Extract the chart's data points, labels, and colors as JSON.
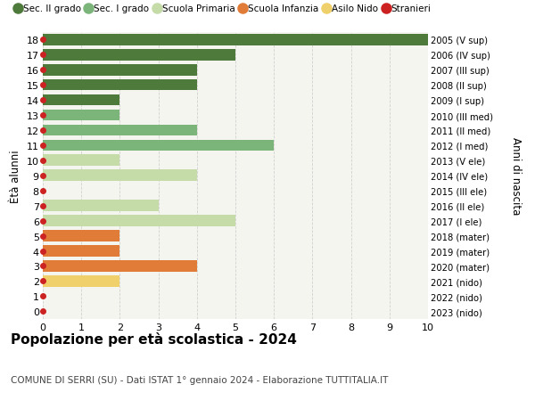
{
  "ages": [
    18,
    17,
    16,
    15,
    14,
    13,
    12,
    11,
    10,
    9,
    8,
    7,
    6,
    5,
    4,
    3,
    2,
    1,
    0
  ],
  "right_labels": [
    "2005 (V sup)",
    "2006 (IV sup)",
    "2007 (III sup)",
    "2008 (II sup)",
    "2009 (I sup)",
    "2010 (III med)",
    "2011 (II med)",
    "2012 (I med)",
    "2013 (V ele)",
    "2014 (IV ele)",
    "2015 (III ele)",
    "2016 (II ele)",
    "2017 (I ele)",
    "2018 (mater)",
    "2019 (mater)",
    "2020 (mater)",
    "2021 (nido)",
    "2022 (nido)",
    "2023 (nido)"
  ],
  "values": [
    10,
    5,
    4,
    4,
    2,
    2,
    4,
    6,
    2,
    4,
    0,
    3,
    5,
    2,
    2,
    4,
    2,
    0,
    0
  ],
  "bar_colors": [
    "#4e7a3c",
    "#4e7a3c",
    "#4e7a3c",
    "#4e7a3c",
    "#4e7a3c",
    "#7cb57a",
    "#7cb57a",
    "#7cb57a",
    "#c5dba8",
    "#c5dba8",
    "#c5dba8",
    "#c5dba8",
    "#c5dba8",
    "#e07c38",
    "#e07c38",
    "#e07c38",
    "#f0d06a",
    "#f0d06a",
    "#f0d06a"
  ],
  "dot_color": "#cc2222",
  "xlim": [
    0,
    10
  ],
  "ylim": [
    -0.5,
    18.5
  ],
  "ylabel_left": "Ètà alunni",
  "ylabel_right": "Anni di nascita",
  "title": "Popolazione per età scolastica - 2024",
  "subtitle": "COMUNE DI SERRI (SU) - Dati ISTAT 1° gennaio 2024 - Elaborazione TUTTITALIA.IT",
  "xticks": [
    0,
    1,
    2,
    3,
    4,
    5,
    6,
    7,
    8,
    9,
    10
  ],
  "legend_labels": [
    "Sec. II grado",
    "Sec. I grado",
    "Scuola Primaria",
    "Scuola Infanzia",
    "Asilo Nido",
    "Stranieri"
  ],
  "legend_colors": [
    "#4e7a3c",
    "#7cb57a",
    "#c5dba8",
    "#e07c38",
    "#f0d06a",
    "#cc2222"
  ],
  "bar_height": 0.75,
  "background_color": "#ffffff",
  "plot_bg_color": "#f5f5f0",
  "grid_color": "#d0d0d0"
}
